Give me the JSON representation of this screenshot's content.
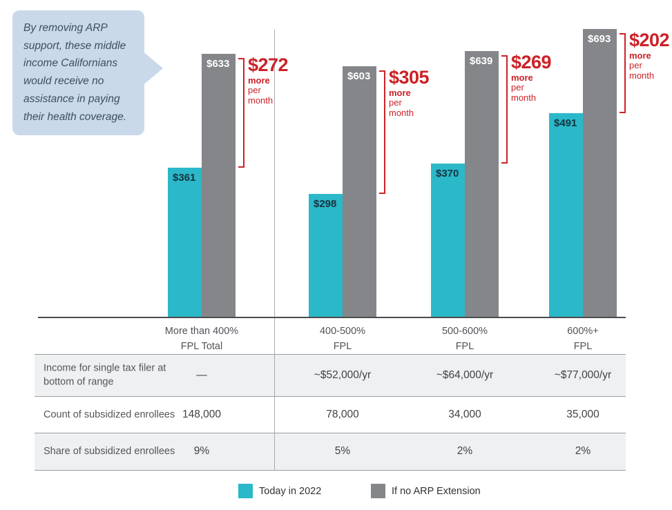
{
  "callout": {
    "text": "By removing ARP support, these middle income Californians would receive no assistance in paying their health coverage."
  },
  "chart_data": {
    "type": "bar",
    "categories": [
      "More than 400% FPL Total",
      "400-500% FPL",
      "500-600% FPL",
      "600%+ FPL"
    ],
    "categories_lines": [
      [
        "More than 400%",
        "FPL Total"
      ],
      [
        "400-500%",
        "FPL"
      ],
      [
        "500-600%",
        "FPL"
      ],
      [
        "600%+",
        "FPL"
      ]
    ],
    "series": [
      {
        "name": "Today in 2022",
        "values": [
          361,
          298,
          370,
          491
        ],
        "labels": [
          "$361",
          "$298",
          "$370",
          "$491"
        ],
        "color": "#2BB8C9",
        "label_color": "#16333F"
      },
      {
        "name": "If no ARP Extension",
        "values": [
          633,
          603,
          639,
          693
        ],
        "labels": [
          "$633",
          "$603",
          "$639",
          "$693"
        ],
        "color": "#848689",
        "label_color": "#FFFFFF"
      }
    ],
    "annotations": [
      {
        "amount": "$272",
        "lines": [
          "more",
          "per",
          "month"
        ]
      },
      {
        "amount": "$305",
        "lines": [
          "more",
          "per",
          "month"
        ]
      },
      {
        "amount": "$269",
        "lines": [
          "more",
          "per",
          "month"
        ]
      },
      {
        "amount": "$202",
        "lines": [
          "more",
          "per",
          "month"
        ]
      }
    ],
    "ylim": [
      0,
      700
    ],
    "grid": false,
    "legend_position": "bottom"
  },
  "table": {
    "rows": [
      {
        "label": "Income for single tax filer at bottom of range",
        "values": [
          "—",
          "~$52,000/yr",
          "~$64,000/yr",
          "~$77,000/yr"
        ]
      },
      {
        "label": "Count of subsidized enrollees",
        "values": [
          "148,000",
          "78,000",
          "34,000",
          "35,000"
        ]
      },
      {
        "label": "Share of subsidized enrollees",
        "values": [
          "9%",
          "5%",
          "2%",
          "2%"
        ]
      }
    ]
  },
  "legend": {
    "items": [
      {
        "label": "Today in 2022",
        "color": "#2BB8C9"
      },
      {
        "label": "If no ARP Extension",
        "color": "#848689"
      }
    ]
  },
  "colors": {
    "accent_red": "#CC2127",
    "bar_teal": "#2BB8C9",
    "bar_gray": "#848689",
    "callout_bg": "#C9D9E9",
    "callout_text": "#3D4E63",
    "baseline": "#4A4B4D",
    "table_shade": "#EEF0F1"
  }
}
